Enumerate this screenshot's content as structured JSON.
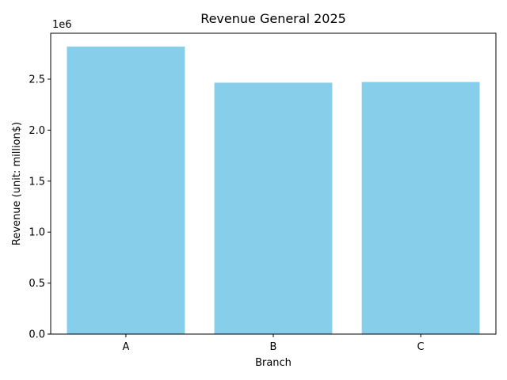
{
  "chart_data": {
    "type": "bar",
    "title": "Revenue General 2025",
    "xlabel": "Branch",
    "ylabel": "Revenue (unit: million$)",
    "categories": [
      "A",
      "B",
      "C"
    ],
    "values": [
      2820000,
      2465000,
      2472000
    ],
    "ylim": [
      0,
      2950000
    ],
    "yticks": [
      0,
      500000,
      1000000,
      1500000,
      2000000,
      2500000
    ],
    "ytick_labels": [
      "0.0",
      "0.5",
      "1.0",
      "1.5",
      "2.0",
      "2.5"
    ],
    "y_offset_label": "1e6",
    "bar_color": "#87ceeb",
    "grid": false
  }
}
